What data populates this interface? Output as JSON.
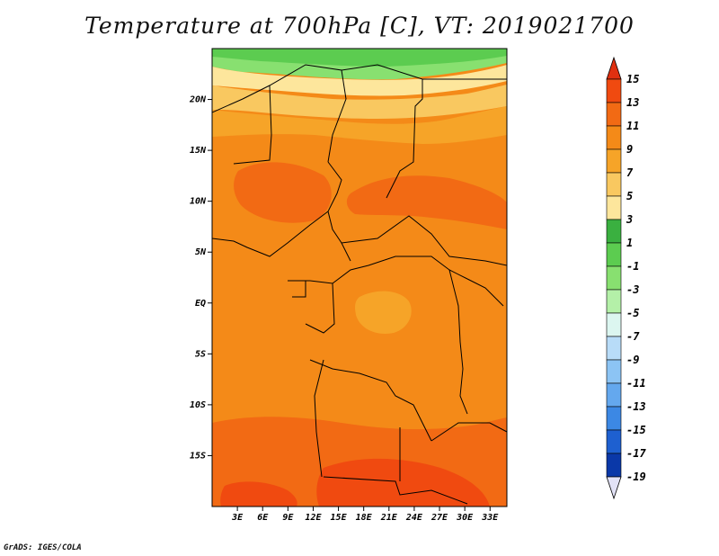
{
  "title": "Temperature at 700hPa [C], VT: 2019021700",
  "credit": "GrADS: IGES/COLA",
  "map": {
    "lat_labels": [
      "20N",
      "15N",
      "10N",
      "5N",
      "EQ",
      "5S",
      "10S",
      "15S"
    ],
    "lon_labels": [
      "3E",
      "6E",
      "9E",
      "12E",
      "15E",
      "18E",
      "21E",
      "24E",
      "27E",
      "30E",
      "33E"
    ],
    "lat_values": [
      20,
      15,
      10,
      5,
      0,
      -5,
      -10,
      -15
    ],
    "lon_values": [
      3,
      6,
      9,
      12,
      15,
      18,
      21,
      24,
      27,
      30,
      33
    ],
    "lon_range": [
      0,
      35
    ],
    "lat_range": [
      -20,
      25
    ]
  },
  "colorbar": {
    "labels": [
      "15",
      "13",
      "11",
      "9",
      "7",
      "5",
      "3",
      "1",
      "-1",
      "-3",
      "-5",
      "-7",
      "-9",
      "-11",
      "-13",
      "-15",
      "-17",
      "-19"
    ],
    "colors": [
      "#e03010",
      "#f04a10",
      "#f26a14",
      "#f48a18",
      "#f6a428",
      "#f9c860",
      "#fde69c",
      "#3ab040",
      "#5ccc50",
      "#88e070",
      "#b4f0a8",
      "#dcf6f0",
      "#b8dcf8",
      "#8cc4f4",
      "#64a8ee",
      "#3c88e4",
      "#1e60d0",
      "#0a38a8",
      "#08146c"
    ]
  }
}
